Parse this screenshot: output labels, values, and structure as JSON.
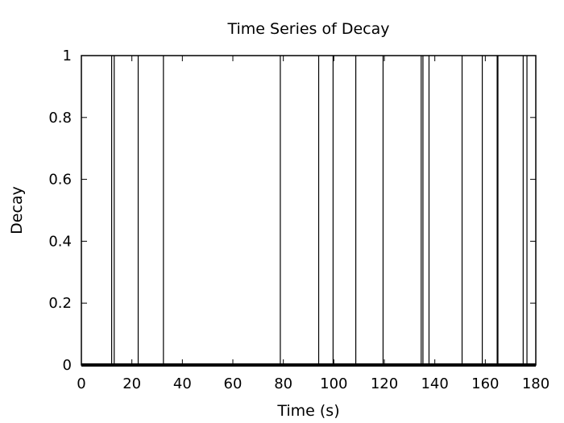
{
  "chart_data": {
    "type": "line",
    "title": "Time Series of Decay",
    "xlabel": "Time (s)",
    "ylabel": "Decay",
    "xlim": [
      0,
      180
    ],
    "ylim": [
      0,
      1
    ],
    "xticks": [
      0,
      20,
      40,
      60,
      80,
      100,
      120,
      140,
      160,
      180
    ],
    "yticks": [
      0,
      0.2,
      0.4,
      0.6,
      0.8,
      1
    ],
    "xtick_labels": [
      "0",
      "20",
      "40",
      "60",
      "80",
      "100",
      "120",
      "140",
      "160",
      "180"
    ],
    "ytick_labels": [
      "0",
      "0.2",
      "0.4",
      "0.6",
      "0.8",
      "1"
    ],
    "grid": false,
    "series": [
      {
        "color": "#000000",
        "baseline": 0,
        "peak": 1,
        "events": [
          12,
          13,
          22.5,
          32.5,
          78.8,
          94,
          99.7,
          108.7,
          119.5,
          134.6,
          135.3,
          137.7,
          150.8,
          158.8,
          164.7,
          165,
          175,
          176.5
        ]
      }
    ]
  }
}
